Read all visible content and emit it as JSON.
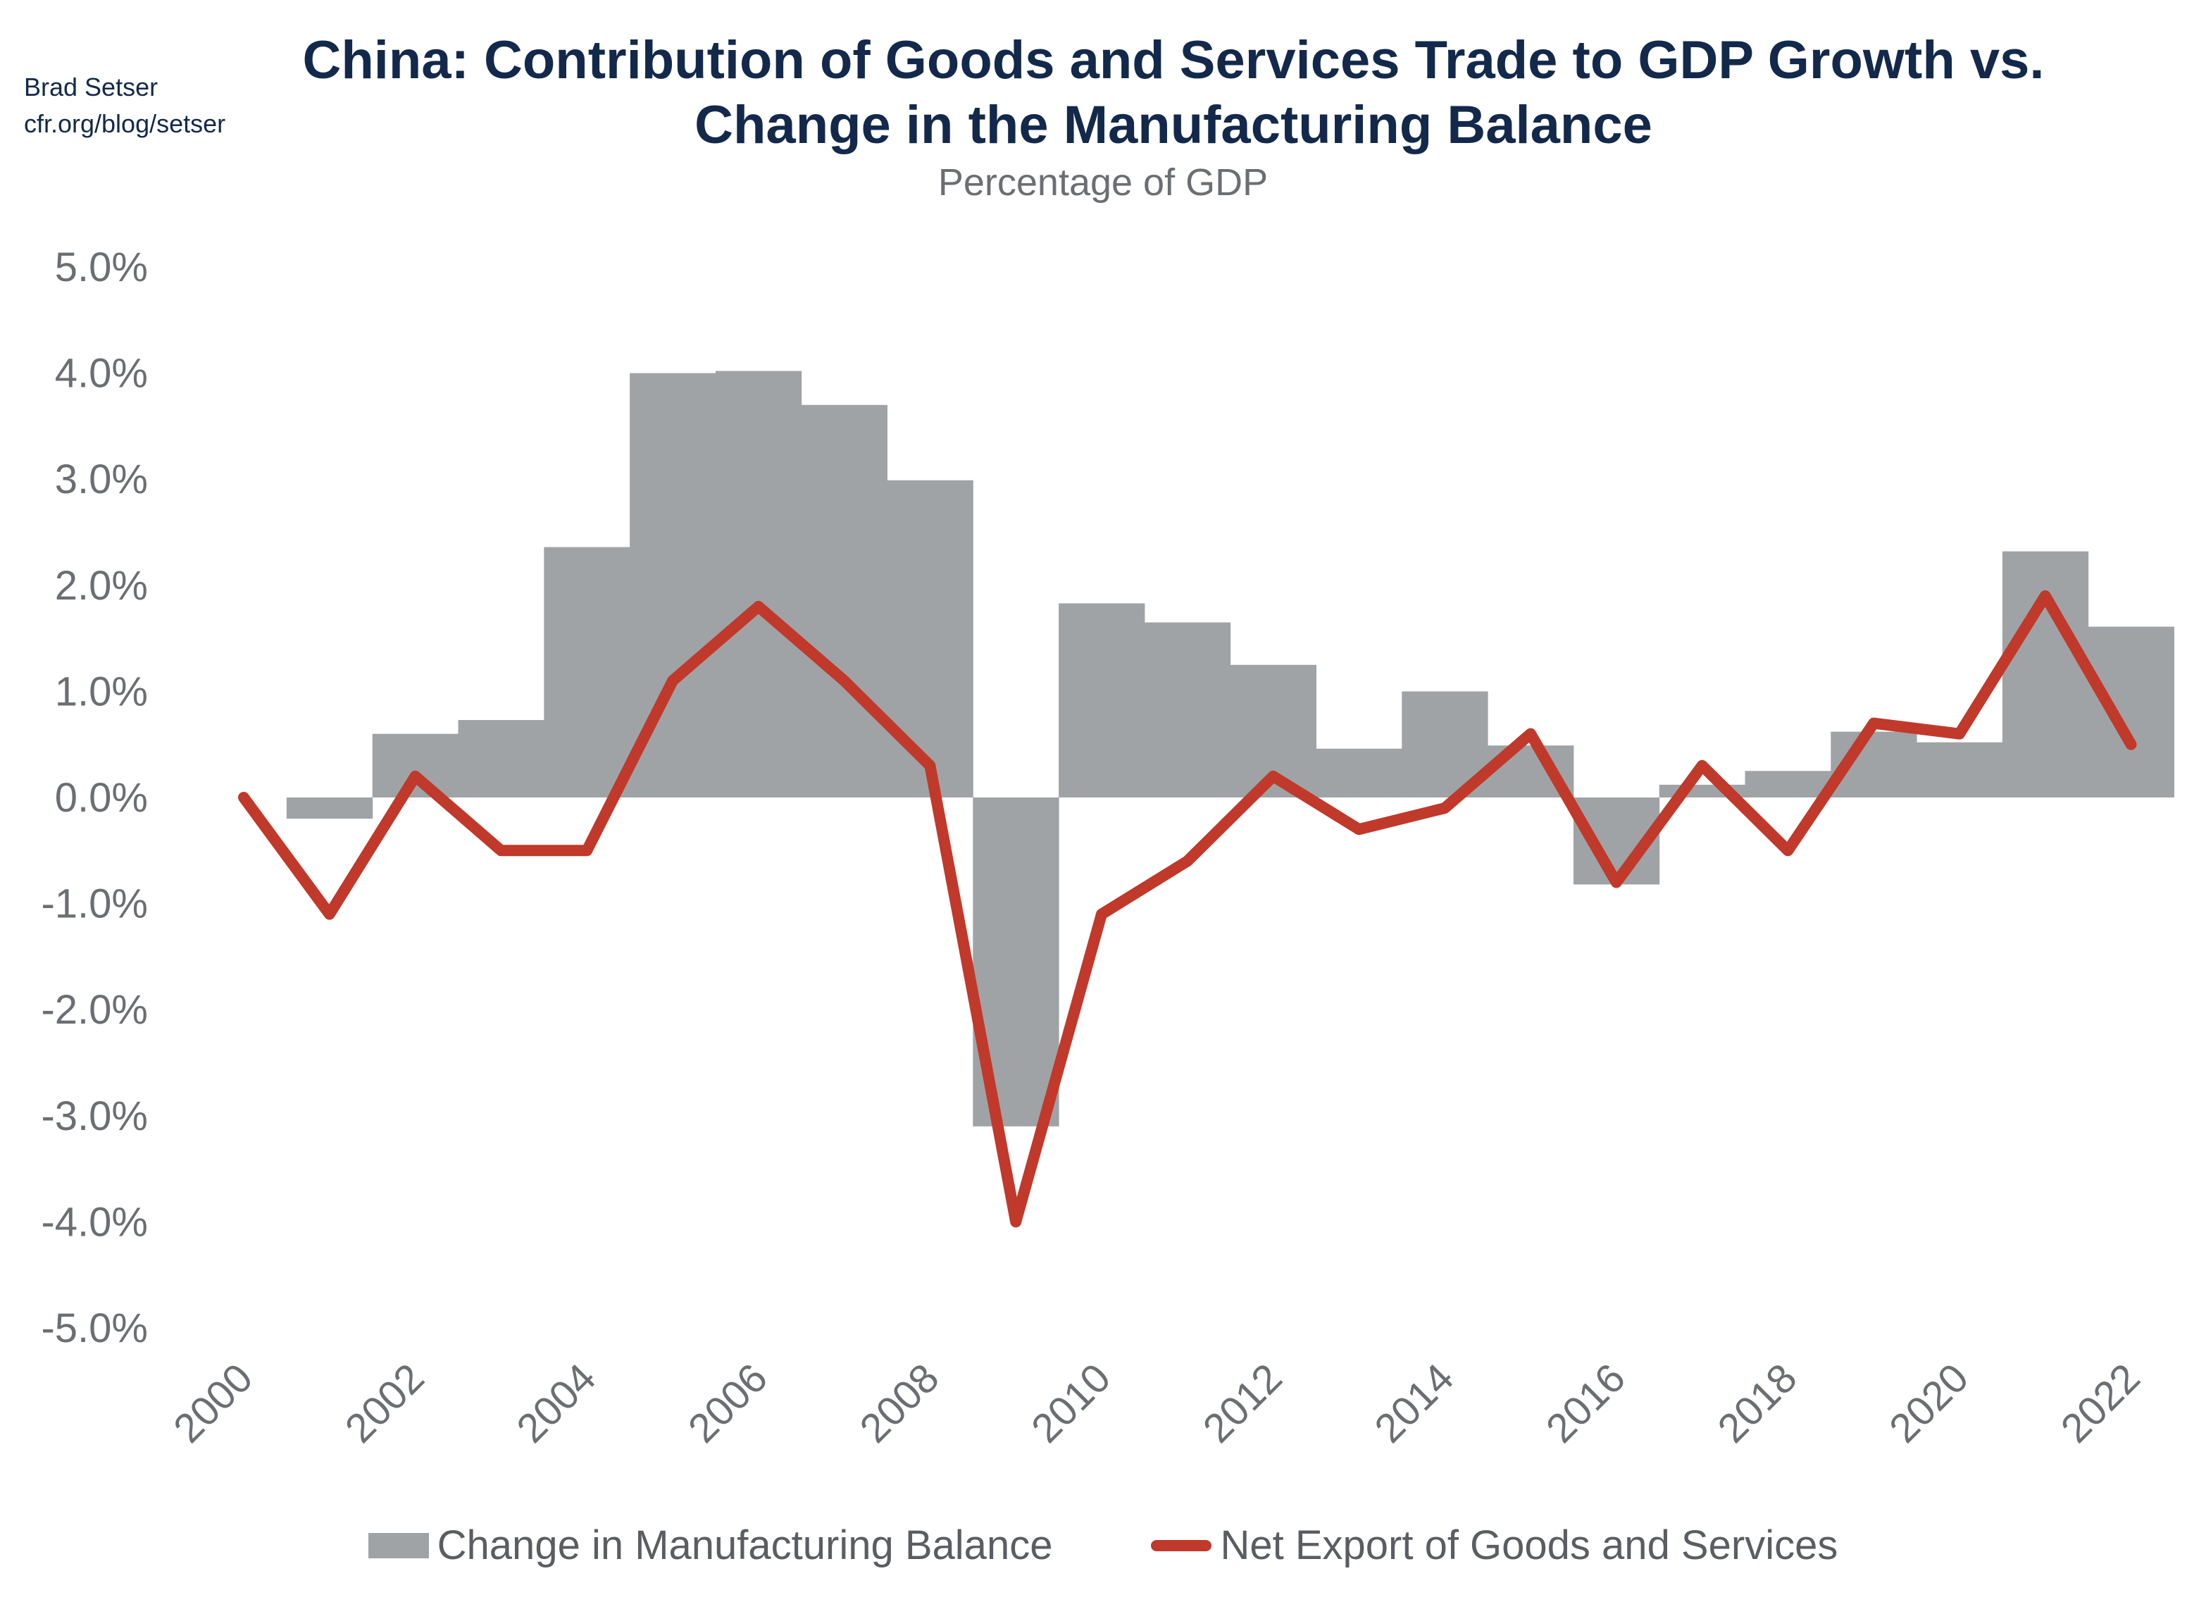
{
  "credit": {
    "author": "Brad Setser",
    "site": "cfr.org/blog/setser"
  },
  "chart_data": {
    "type": "bar+line",
    "title": "China: Contribution of Goods and Services Trade to GDP Growth vs. Change in the Manufacturing Balance",
    "title_lines": [
      "China: Contribution of Goods and Services Trade to GDP Growth vs.",
      "Change in the Manufacturing Balance"
    ],
    "subtitle": "Percentage of GDP",
    "xlabel": "",
    "ylabel": "",
    "ylim": [
      -5,
      5
    ],
    "y_ticks": [
      "5.0%",
      "4.0%",
      "3.0%",
      "2.0%",
      "1.0%",
      "0.0%",
      "-1.0%",
      "-2.0%",
      "-3.0%",
      "-4.0%",
      "-5.0%"
    ],
    "x_ticks": [
      "2000",
      "2002",
      "2004",
      "2006",
      "2008",
      "2010",
      "2012",
      "2014",
      "2016",
      "2018",
      "2020",
      "2022"
    ],
    "grid": false,
    "legend_position": "bottom",
    "x": [
      2000,
      2001,
      2002,
      2003,
      2004,
      2005,
      2006,
      2007,
      2008,
      2009,
      2010,
      2011,
      2012,
      2013,
      2014,
      2015,
      2016,
      2017,
      2018,
      2019,
      2020,
      2021,
      2022
    ],
    "series": [
      {
        "name": "Change in Manufacturing Balance",
        "type": "bar",
        "color": "#a0a3a6",
        "values": [
          null,
          -0.2,
          0.6,
          0.73,
          2.36,
          4.0,
          4.02,
          3.7,
          2.99,
          -3.1,
          1.83,
          1.65,
          1.25,
          0.46,
          1.0,
          0.49,
          -0.82,
          0.12,
          0.25,
          0.62,
          0.52,
          2.32,
          1.61
        ]
      },
      {
        "name": "Net Export of Goods and Services",
        "type": "line",
        "color": "#c0392b",
        "values": [
          0,
          -1.1,
          0.2,
          -0.5,
          -0.5,
          1.1,
          1.8,
          1.1,
          0.3,
          -4.0,
          -1.1,
          -0.6,
          0.2,
          -0.3,
          -0.1,
          0.6,
          -0.8,
          0.3,
          -0.5,
          0.7,
          0.6,
          1.9,
          0.5
        ]
      }
    ]
  }
}
